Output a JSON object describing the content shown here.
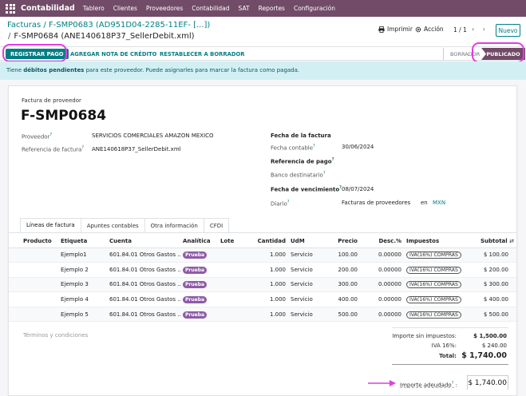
{
  "navbar": {
    "brand": "Contabilidad",
    "menus": [
      "Tablero",
      "Clientes",
      "Proveedores",
      "Contabilidad",
      "SAT",
      "Reportes",
      "Configuración"
    ]
  },
  "control": {
    "breadcrumb_parent": "Facturas / F-SMP0683 (AD951D04-2285-11EF- [...])",
    "breadcrumb_sep": "/",
    "breadcrumb_current": "F-SMP0684 (ANE140618P37_SellerDebit.xml)",
    "print_label": "Imprimir",
    "action_label": "Acción",
    "pager": "1 / 1",
    "pager_arrows": "‹ ›",
    "new_label": "Nuevo"
  },
  "statusbar": {
    "register_payment": "REGISTRAR PAGO",
    "add_credit_note": "AGREGAR NOTA DE CRÉDITO",
    "reset_draft": "RESTABLECER A BORRADOR",
    "stage_draft": "BORRADOR",
    "stage_posted": "PUBLICADO"
  },
  "alert": {
    "prefix": "Tiene ",
    "bold": "débitos pendientes",
    "suffix": " para este proveedor. Puede asignarles para marcar la factura como pagada."
  },
  "form": {
    "doc_type": "Factura de proveedor",
    "name": "F-SMP0684",
    "vendor_label": "Proveedor",
    "vendor_value": "SERVICIOS COMERCIALES AMAZON MEXICO",
    "ref_label": "Referencia de factura",
    "ref_value": "ANE140618P37_SellerDebit.xml",
    "invoice_date_label": "Fecha de la factura",
    "accounting_date_label": "Fecha contable",
    "accounting_date_value": "30/06/2024",
    "payment_ref_label": "Referencia de pago",
    "bank_label": "Banco destinatario",
    "due_date_label": "Fecha de vencimiento",
    "due_date_value": "08/07/2024",
    "journal_label": "Diario",
    "journal_value": "Facturas de proveedores",
    "journal_in": "en",
    "currency": "MXN",
    "help_mark": "?"
  },
  "tabs": [
    "Líneas de factura",
    "Apuntes contables",
    "Otra información",
    "CFDI"
  ],
  "table": {
    "columns": [
      "Producto",
      "Etiqueta",
      "Cuenta",
      "Analítica",
      "Lote",
      "Cantidad",
      "UdM",
      "Precio",
      "Desc.%",
      "Impuestos",
      "Subtotal"
    ],
    "settings_icon": "⇄",
    "rows": [
      {
        "product": "",
        "label": "Ejemplo1",
        "account": "601.84.01 Otros Gastos ...",
        "analytic": "Prueba",
        "lot": "",
        "qty": "1.000",
        "uom": "Servicio",
        "price": "100.00",
        "disc": "0.00000",
        "tax": "IVA(16%) COMPRAS",
        "subtotal": "$ 100.00"
      },
      {
        "product": "",
        "label": "Ejemplo 2",
        "account": "601.84.01 Otros Gastos ...",
        "analytic": "Prueba",
        "lot": "",
        "qty": "1.000",
        "uom": "Servicio",
        "price": "200.00",
        "disc": "0.00000",
        "tax": "IVA(16%) COMPRAS",
        "subtotal": "$ 200.00"
      },
      {
        "product": "",
        "label": "Ejemplo 3",
        "account": "601.84.01 Otros Gastos ...",
        "analytic": "Prueba",
        "lot": "",
        "qty": "1.000",
        "uom": "Servicio",
        "price": "300.00",
        "disc": "0.00000",
        "tax": "IVA(16%) COMPRAS",
        "subtotal": "$ 300.00"
      },
      {
        "product": "",
        "label": "Ejemplo 4",
        "account": "601.84.01 Otros Gastos ...",
        "analytic": "Prueba",
        "lot": "",
        "qty": "1.000",
        "uom": "Servicio",
        "price": "400.00",
        "disc": "0.00000",
        "tax": "IVA(16%) COMPRAS",
        "subtotal": "$ 400.00"
      },
      {
        "product": "",
        "label": "Ejemplo 5",
        "account": "601.84.01 Otros Gastos ...",
        "analytic": "Prueba",
        "lot": "",
        "qty": "1.000",
        "uom": "Servicio",
        "price": "500.00",
        "disc": "0.00000",
        "tax": "IVA(16%) COMPRAS",
        "subtotal": "$ 500.00"
      }
    ]
  },
  "footer": {
    "terms_placeholder": "Términos y condiciones",
    "untaxed_label": "Importe sin impuestos:",
    "untaxed_value": "$ 1,500.00",
    "tax_label": "IVA 16%:",
    "tax_value": "$ 240.00",
    "total_label": "Total:",
    "total_value": "$ 1,740.00",
    "due_label": "Importe adeudado",
    "due_value": "$ 1,740.00"
  },
  "colors": {
    "brand": "#714b67",
    "accent": "#017e84",
    "highlight": "#e23ee2"
  }
}
